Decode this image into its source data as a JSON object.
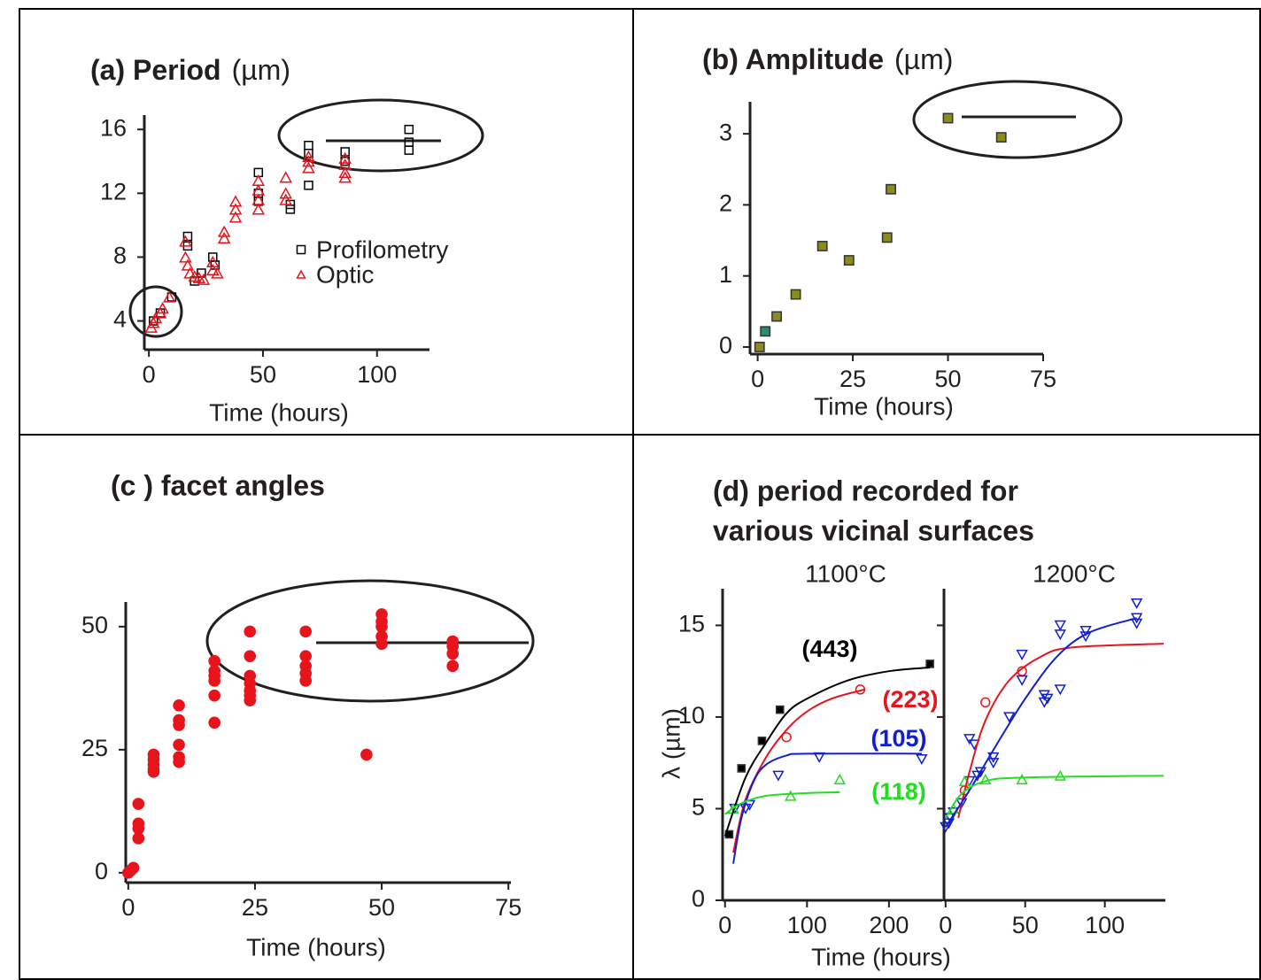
{
  "chart_data": [
    {
      "type": "scatter",
      "title": "(a) Period",
      "title_unit": "(µm)",
      "xlabel": "Time (hours)",
      "xlim": [
        -2,
        123
      ],
      "ylim": [
        2.2,
        16.9
      ],
      "xticks": [
        0,
        50,
        100
      ],
      "yticks": [
        4,
        8,
        12,
        16
      ],
      "series": [
        {
          "name": "Profilometry",
          "color": "#000000",
          "marker": "square",
          "filled": false,
          "x": [
            2,
            5,
            10,
            17,
            17,
            20,
            23,
            28,
            29,
            48,
            48,
            48,
            62,
            62,
            70,
            70,
            70,
            86,
            86,
            114,
            114,
            114
          ],
          "values": [
            4.0,
            4.5,
            5.5,
            9.3,
            8.7,
            6.5,
            7.0,
            8.0,
            7.5,
            13.3,
            12.0,
            11.5,
            11.3,
            11.0,
            15.0,
            14.5,
            12.5,
            14.6,
            14.0,
            16.0,
            15.2,
            14.7
          ]
        },
        {
          "name": "Optic",
          "color": "#e8141c",
          "marker": "triangle",
          "filled": false,
          "x": [
            1,
            2,
            3,
            5,
            6,
            9,
            16,
            16,
            17,
            18,
            20,
            22,
            24,
            28,
            28,
            30,
            33,
            33,
            38,
            38,
            38,
            48,
            48,
            48,
            48,
            60,
            60,
            60,
            70,
            70,
            70,
            86,
            86,
            86,
            86
          ],
          "values": [
            3.6,
            3.9,
            4.2,
            4.5,
            4.8,
            5.5,
            9.0,
            8.0,
            7.5,
            7.0,
            6.8,
            6.7,
            6.6,
            7.2,
            7.7,
            7.0,
            9.6,
            9.2,
            11.5,
            11.0,
            10.5,
            12.8,
            12.2,
            11.6,
            11.0,
            13.0,
            12.0,
            11.6,
            14.0,
            13.6,
            14.3,
            14.2,
            13.8,
            13.3,
            13.0
          ]
        }
      ]
    },
    {
      "type": "scatter",
      "title": "(b) Amplitude",
      "title_unit": "(µm)",
      "xlabel": "Time (hours)",
      "xlim": [
        -2,
        75
      ],
      "ylim": [
        -0.1,
        3.45
      ],
      "xticks": [
        0,
        25,
        50,
        75
      ],
      "yticks": [
        0,
        1,
        2,
        3
      ],
      "series": [
        {
          "color": "#8b8b1e",
          "marker": "square",
          "filled": true,
          "x": [
            0.5,
            5,
            10,
            17,
            24,
            34,
            35,
            50,
            64
          ],
          "values": [
            0,
            0.43,
            0.74,
            1.42,
            1.22,
            1.54,
            2.22,
            3.22,
            2.95
          ]
        },
        {
          "color": "#2e8b70",
          "marker": "square",
          "filled": true,
          "x": [
            2
          ],
          "values": [
            0.22
          ]
        }
      ]
    },
    {
      "type": "scatter",
      "title": "(c ) facet angles",
      "xlabel": "Time (hours)",
      "xlim": [
        -0.5,
        75.5
      ],
      "ylim": [
        -2,
        55
      ],
      "xticks": [
        0,
        25,
        50,
        75
      ],
      "yticks": [
        0,
        25,
        50
      ],
      "series": [
        {
          "color": "#e8141c",
          "marker": "circle",
          "filled": true,
          "x": [
            0,
            0.5,
            1,
            2,
            2,
            2,
            2,
            5,
            5,
            5,
            5,
            5,
            10,
            10,
            10,
            10,
            10,
            10,
            17,
            17,
            17,
            17,
            17,
            17,
            24,
            24,
            24,
            24,
            24,
            24,
            24,
            35,
            35,
            35,
            35,
            35,
            47,
            50,
            50,
            50,
            50,
            50,
            64,
            64,
            64,
            64
          ],
          "values": [
            0,
            0.5,
            1,
            14,
            10,
            9,
            7,
            24,
            23,
            22,
            21,
            20.5,
            34,
            31,
            30,
            26,
            23.5,
            22.5,
            43,
            41,
            40,
            39,
            36,
            30.5,
            49,
            44,
            40,
            38.5,
            37,
            36,
            35,
            49,
            44,
            42,
            40.5,
            39,
            24,
            52.5,
            51,
            50,
            48,
            46.5,
            47,
            46,
            44.5,
            42
          ]
        }
      ]
    },
    {
      "type": "scatter",
      "title": [
        "(d) period recorded for",
        "various vicinal surfaces"
      ],
      "subtitle": "1100°C",
      "ylabel": "λ (µm)",
      "xlabel": "Time (hours)",
      "xlim": [
        -3,
        265
      ],
      "ylim": [
        0,
        17
      ],
      "xticks": [
        0,
        100,
        200
      ],
      "yticks": [
        0,
        5,
        10,
        15
      ],
      "series": [
        {
          "name": "(443)",
          "color": "#000000",
          "marker": "square",
          "filled": true,
          "x": [
            5,
            20,
            45,
            67,
            250
          ],
          "values": [
            3.6,
            7.2,
            8.7,
            10.4,
            12.9
          ]
        },
        {
          "name": "(223)",
          "color": "#e8141c",
          "marker": "circle",
          "filled": false,
          "x": [
            75,
            165
          ],
          "values": [
            8.9,
            11.5
          ]
        },
        {
          "name": "(105)",
          "color": "#1020d0",
          "marker": "triangle-down",
          "filled": false,
          "x": [
            12,
            25,
            30,
            65,
            115,
            240
          ],
          "values": [
            5.0,
            5.0,
            5.2,
            6.8,
            7.8,
            7.7
          ]
        },
        {
          "name": "(118)",
          "color": "#22dd22",
          "marker": "triangle",
          "filled": false,
          "x": [
            10,
            80,
            140
          ],
          "values": [
            5.0,
            5.7,
            6.6
          ]
        },
        {
          "color": "#000000",
          "marker": "line",
          "x": [
            0,
            25,
            50,
            75,
            100,
            150,
            200,
            250
          ],
          "values": [
            3.5,
            6.7,
            8.6,
            10.2,
            11.0,
            12.0,
            12.5,
            12.7
          ]
        },
        {
          "color": "#e8141c",
          "marker": "line",
          "x": [
            10,
            25,
            50,
            75,
            100,
            130,
            170
          ],
          "values": [
            2.6,
            5.5,
            7.8,
            9.3,
            10.3,
            11.0,
            11.5
          ]
        },
        {
          "color": "#1020d0",
          "marker": "line",
          "x": [
            10,
            20,
            35,
            50,
            75,
            100,
            240
          ],
          "values": [
            2.0,
            4.5,
            6.5,
            7.4,
            7.9,
            8.0,
            8.0
          ]
        },
        {
          "color": "#22dd22",
          "marker": "line",
          "x": [
            0,
            20,
            50,
            100,
            140
          ],
          "values": [
            4.7,
            5.3,
            5.7,
            5.85,
            5.9
          ]
        }
      ]
    },
    {
      "type": "scatter",
      "subtitle": "1200°C",
      "show_ytick_labels": false,
      "xlim": [
        -1,
        138
      ],
      "ylim": [
        0,
        17
      ],
      "xticks": [
        0,
        50,
        100
      ],
      "yticks": [
        0,
        5,
        10,
        15
      ],
      "series": [
        {
          "color": "#e8141c",
          "marker": "circle",
          "filled": false,
          "x": [
            12,
            25,
            48
          ],
          "values": [
            6.0,
            10.8,
            12.5
          ]
        },
        {
          "color": "#1020d0",
          "marker": "triangle-down",
          "filled": false,
          "x": [
            0,
            2,
            3,
            5,
            10,
            15,
            15,
            18,
            20,
            22,
            30,
            30,
            40,
            48,
            48,
            62,
            62,
            64,
            72,
            72,
            72,
            88,
            88,
            120,
            120,
            120
          ],
          "values": [
            4.0,
            4.2,
            4.5,
            4.8,
            5.3,
            6.5,
            8.8,
            8.5,
            6.8,
            7.0,
            7.8,
            7.5,
            10.0,
            12.0,
            13.4,
            11.2,
            10.8,
            11.0,
            11.5,
            14.5,
            15.0,
            14.4,
            14.7,
            15.4,
            16.2,
            15.1
          ]
        },
        {
          "color": "#22dd22",
          "marker": "triangle",
          "filled": false,
          "x": [
            5,
            12,
            25,
            48,
            72
          ],
          "values": [
            5.0,
            6.5,
            6.6,
            6.6,
            6.8
          ]
        },
        {
          "color": "#e8141c",
          "marker": "line",
          "x": [
            8,
            15,
            25,
            40,
            60,
            80,
            137
          ],
          "values": [
            4.5,
            7.0,
            9.8,
            12.0,
            13.3,
            13.8,
            14.0
          ]
        },
        {
          "color": "#1020d0",
          "marker": "line",
          "x": [
            0,
            15,
            30,
            50,
            70,
            90,
            120
          ],
          "values": [
            4.0,
            6.0,
            8.2,
            11.0,
            13.3,
            14.6,
            15.4
          ]
        },
        {
          "color": "#22dd22",
          "marker": "line",
          "x": [
            0,
            10,
            25,
            50,
            137
          ],
          "values": [
            4.5,
            5.8,
            6.5,
            6.7,
            6.8
          ]
        }
      ]
    }
  ]
}
